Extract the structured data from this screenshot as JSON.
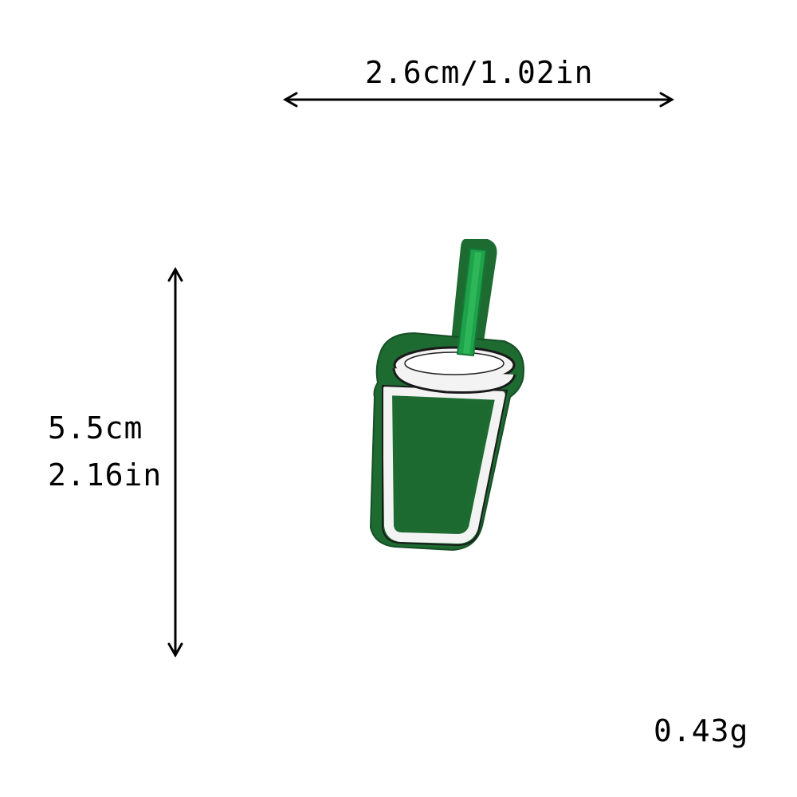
{
  "dimensions": {
    "width_label": "2.6cm/1.02in",
    "height_cm_label": "5.5cm",
    "height_in_label": "2.16in",
    "weight_label": "0.43g"
  },
  "product": {
    "icon": "drink-cup-with-straw-patch-icon",
    "colors": {
      "felt_green": "#1e6b32",
      "straw_green": "#1fa24a",
      "white_thread": "#f3f3f3",
      "outline": "#1a1a1a"
    }
  }
}
